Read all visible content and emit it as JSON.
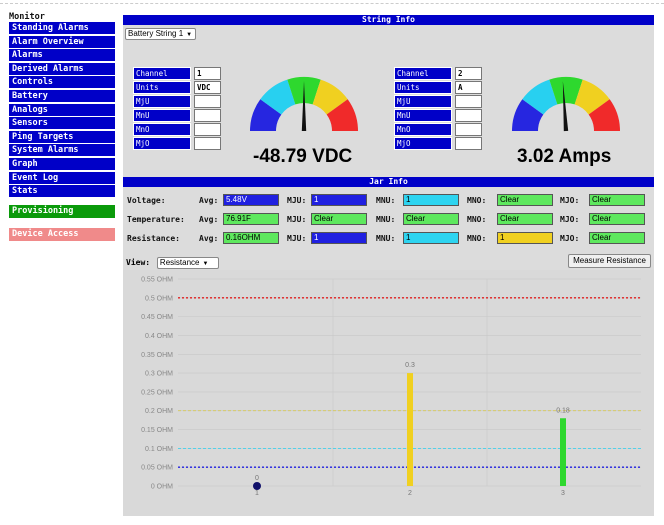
{
  "sidebar": {
    "heading": "Monitor",
    "items": [
      "Standing Alarms",
      "Alarm Overview",
      "Alarms",
      "Derived Alarms",
      "Controls",
      "Battery",
      "Analogs",
      "Sensors",
      "Ping Targets",
      "System Alarms",
      "Graph",
      "Event Log",
      "Stats"
    ],
    "provisioning": "Provisioning",
    "device_access": "Device Access"
  },
  "string_info": {
    "title": "String Info",
    "selected_string": "Battery String 1",
    "left": {
      "rows": [
        [
          "Channel",
          "1"
        ],
        [
          "Units",
          "VDC"
        ],
        [
          "MjU",
          ""
        ],
        [
          "MnU",
          ""
        ],
        [
          "MnO",
          ""
        ],
        [
          "MjO",
          ""
        ]
      ],
      "reading": "-48.79 VDC",
      "needle_fraction": 0.5
    },
    "right": {
      "rows": [
        [
          "Channel",
          "2"
        ],
        [
          "Units",
          "A"
        ],
        [
          "MjU",
          ""
        ],
        [
          "MnU",
          ""
        ],
        [
          "MnO",
          ""
        ],
        [
          "MjO",
          ""
        ]
      ],
      "reading": "3.02 Amps",
      "needle_fraction": 0.48
    },
    "gauge_colors": {
      "blue": "#2626e0",
      "cyan": "#28d0f0",
      "green": "#2ed82e",
      "yellow": "#f0d020",
      "red": "#f02a2a"
    }
  },
  "jar_info": {
    "title": "Jar Info",
    "rows": [
      {
        "label": "Voltage:",
        "avg_label": "Avg:",
        "avg": "5.48V",
        "avg_color": "blue",
        "mju_label": "MJU:",
        "mju": "1",
        "mju_color": "blue",
        "mnu_label": "MNU:",
        "mnu": "1",
        "mnu_color": "cyan",
        "mno_label": "MNO:",
        "mno": "Clear",
        "mno_color": "green",
        "mjo_label": "MJO:",
        "mjo": "Clear",
        "mjo_color": "green"
      },
      {
        "label": "Temperature:",
        "avg_label": "Avg:",
        "avg": "76.91F",
        "avg_color": "green",
        "mju_label": "MJU:",
        "mju": "Clear",
        "mju_color": "green",
        "mnu_label": "MNU:",
        "mnu": "Clear",
        "mnu_color": "green",
        "mno_label": "MNO:",
        "mno": "Clear",
        "mno_color": "green",
        "mjo_label": "MJO:",
        "mjo": "Clear",
        "mjo_color": "green"
      },
      {
        "label": "Resistance:",
        "avg_label": "Avg:",
        "avg": "0.16OHM",
        "avg_color": "green",
        "mju_label": "MJU:",
        "mju": "1",
        "mju_color": "blue",
        "mnu_label": "MNU:",
        "mnu": "1",
        "mnu_color": "cyan",
        "mno_label": "MNO:",
        "mno": "1",
        "mno_color": "yellow",
        "mjo_label": "MJO:",
        "mjo": "Clear",
        "mjo_color": "green"
      }
    ]
  },
  "view": {
    "label": "View:",
    "selected": "Resistance",
    "button": "Measure Resistance"
  },
  "chart_data": {
    "type": "bar",
    "categories": [
      "1",
      "2",
      "3"
    ],
    "values": [
      0,
      0.3,
      0.18
    ],
    "value_labels": [
      "0",
      "0.3",
      "0.18"
    ],
    "bar_colors": [
      "#10106a",
      "#f0d020",
      "#2ed82e"
    ],
    "y_ticks": [
      "0 OHM",
      "0.05 OHM",
      "0.1 OHM",
      "0.15 OHM",
      "0.2 OHM",
      "0.25 OHM",
      "0.3 OHM",
      "0.35 OHM",
      "0.4 OHM",
      "0.45 OHM",
      "0.5 OHM",
      "0.55 OHM"
    ],
    "ylim": [
      0,
      0.55
    ],
    "thresholds": [
      {
        "value": 0.5,
        "color": "#e02020",
        "style": "dotted"
      },
      {
        "value": 0.2,
        "color": "#d8c840",
        "style": "dashed"
      },
      {
        "value": 0.1,
        "color": "#28d0f0",
        "style": "dashed"
      },
      {
        "value": 0.05,
        "color": "#2020e0",
        "style": "dotted"
      }
    ]
  }
}
